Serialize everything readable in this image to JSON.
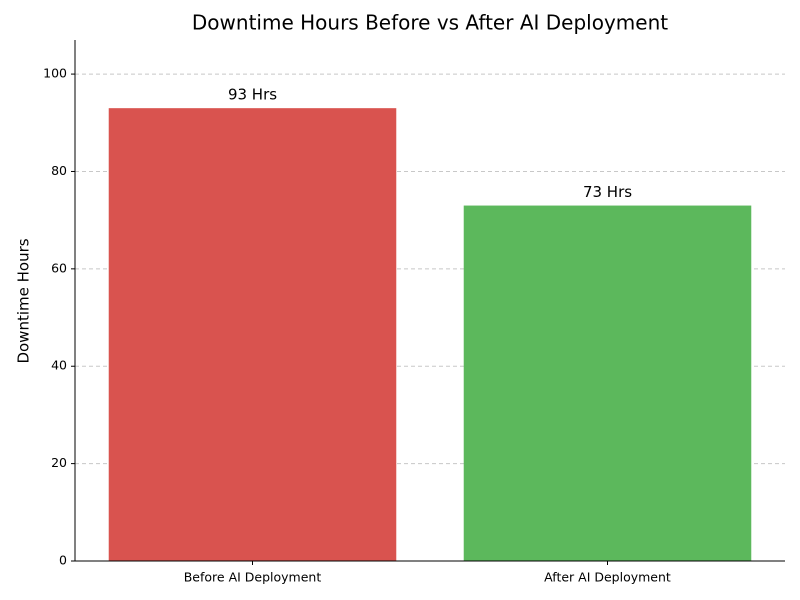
{
  "chart_data": {
    "type": "bar",
    "title": "Downtime Hours Before vs After AI Deployment",
    "y_label": "Downtime Hours",
    "categories": [
      "Before AI Deployment",
      "After AI Deployment"
    ],
    "values": [
      93,
      73
    ],
    "value_labels": [
      "93 Hrs",
      "73 Hrs"
    ],
    "colors": [
      "#d9534f",
      "#5cb85c"
    ],
    "ylim": [
      0,
      107
    ],
    "yticks": [
      0,
      20,
      40,
      60,
      80,
      100
    ],
    "grid": true
  }
}
